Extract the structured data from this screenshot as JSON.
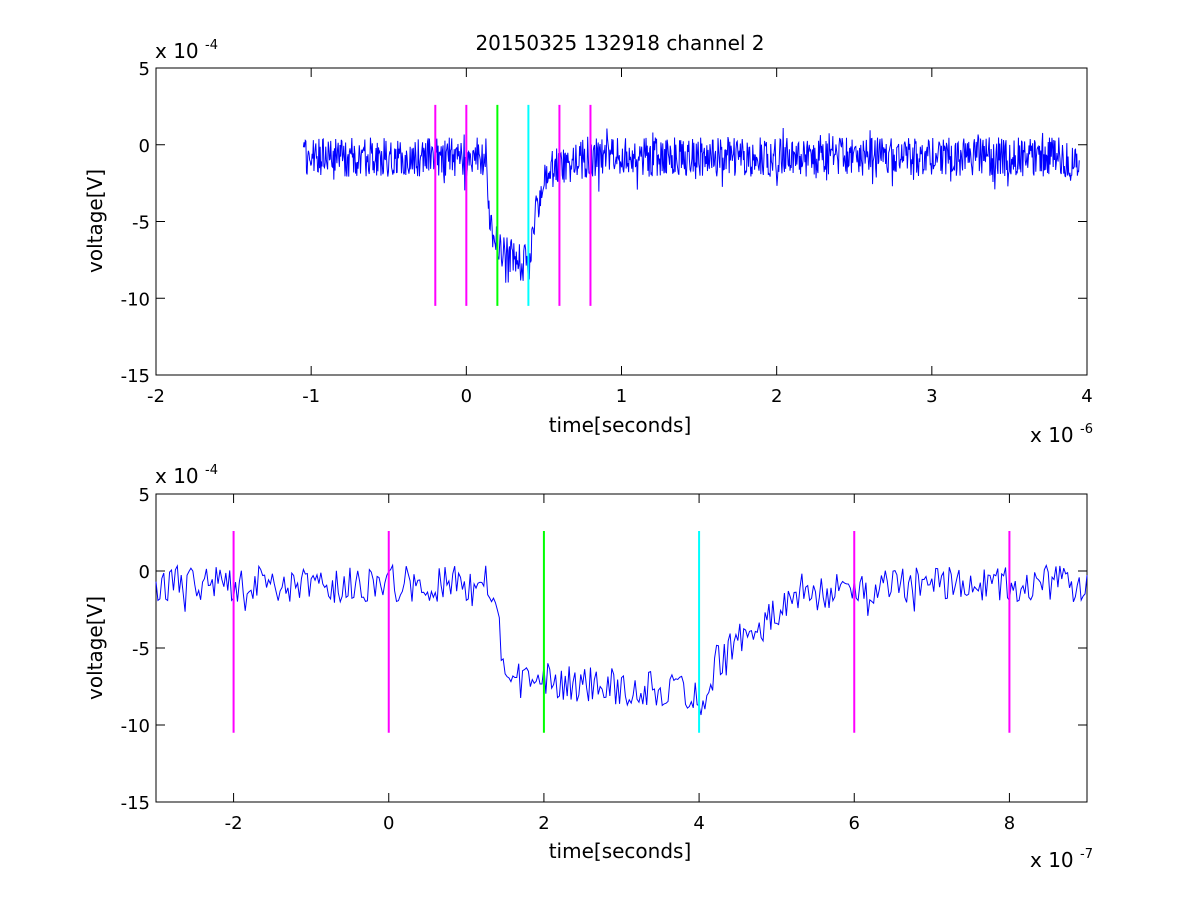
{
  "figure": {
    "title": "20150325 132918 channel 2"
  },
  "colors": {
    "signal": "#0000ff",
    "magenta_marker": "#ff00ff",
    "green_marker": "#00ff00",
    "cyan_marker": "#00ffff",
    "axes": "#000000"
  },
  "chart_data": [
    {
      "type": "line",
      "title": "20150325 132918 channel 2",
      "xlabel": "time[seconds]",
      "ylabel": "voltage[V]",
      "xlim": [
        -2,
        4
      ],
      "ylim": [
        -15,
        5
      ],
      "x_exponent_base": "x 10",
      "x_exponent": "-6",
      "y_exponent_base": "x 10",
      "y_exponent": "-4",
      "x_ticks": [
        -2,
        -1,
        0,
        1,
        2,
        3,
        4
      ],
      "x_tick_labels": [
        "-2",
        "-1",
        "0",
        "1",
        "2",
        "3",
        "4"
      ],
      "y_ticks": [
        5,
        0,
        -5,
        -10,
        -15
      ],
      "y_tick_labels": [
        "5",
        "0",
        "-5",
        "-10",
        "-15"
      ],
      "grid": false,
      "series": [
        {
          "color": "#0000ff",
          "x_range": [
            -1.05,
            3.95
          ],
          "baseline": [
            [
              -1.05,
              -0.8
            ],
            [
              0.13,
              -0.8
            ],
            [
              0.15,
              -4.5
            ],
            [
              0.18,
              -6.4
            ],
            [
              0.27,
              -7.0
            ],
            [
              0.36,
              -7.3
            ],
            [
              0.41,
              -7.8
            ],
            [
              0.43,
              -5.2
            ],
            [
              0.48,
              -3.0
            ],
            [
              0.55,
              -1.5
            ],
            [
              0.8,
              -0.8
            ],
            [
              3.95,
              -0.8
            ]
          ],
          "noise_amplitude": 1.6,
          "min_value": -9.8
        }
      ],
      "markers": [
        {
          "x": -0.2,
          "color": "#ff00ff",
          "y_range": [
            -10.5,
            2.6
          ]
        },
        {
          "x": 0.0,
          "color": "#ff00ff",
          "y_range": [
            -10.5,
            2.6
          ]
        },
        {
          "x": 0.2,
          "color": "#00ff00",
          "y_range": [
            -10.5,
            2.6
          ]
        },
        {
          "x": 0.4,
          "color": "#00ffff",
          "y_range": [
            -10.5,
            2.6
          ]
        },
        {
          "x": 0.6,
          "color": "#ff00ff",
          "y_range": [
            -10.5,
            2.6
          ]
        },
        {
          "x": 0.8,
          "color": "#ff00ff",
          "y_range": [
            -10.5,
            2.6
          ]
        }
      ]
    },
    {
      "type": "line",
      "xlabel": "time[seconds]",
      "ylabel": "voltage[V]",
      "xlim": [
        -3,
        9
      ],
      "ylim": [
        -15,
        5
      ],
      "x_exponent_base": "x 10",
      "x_exponent": "-7",
      "y_exponent_base": "x 10",
      "y_exponent": "-4",
      "x_ticks": [
        -2,
        0,
        2,
        4,
        6,
        8
      ],
      "x_tick_labels": [
        "-2",
        "0",
        "2",
        "4",
        "6",
        "8"
      ],
      "y_ticks": [
        5,
        0,
        -5,
        -10,
        -15
      ],
      "y_tick_labels": [
        "5",
        "0",
        "-5",
        "-10",
        "-15"
      ],
      "grid": false,
      "series": [
        {
          "color": "#0000ff",
          "x_range": [
            -3,
            9
          ],
          "baseline": [
            [
              -3,
              -0.8
            ],
            [
              1.35,
              -0.8
            ],
            [
              1.4,
              -3.5
            ],
            [
              1.5,
              -5.8
            ],
            [
              1.8,
              -7.0
            ],
            [
              2.5,
              -7.4
            ],
            [
              3.5,
              -7.6
            ],
            [
              3.95,
              -8.2
            ],
            [
              4.1,
              -8.5
            ],
            [
              4.2,
              -6.0
            ],
            [
              4.5,
              -4.5
            ],
            [
              5.0,
              -2.8
            ],
            [
              5.5,
              -1.4
            ],
            [
              6.0,
              -1.0
            ],
            [
              9,
              -0.8
            ]
          ],
          "noise_amplitude": 1.5,
          "min_value": -9.6
        }
      ],
      "markers": [
        {
          "x": -2,
          "color": "#ff00ff",
          "y_range": [
            -10.5,
            2.6
          ]
        },
        {
          "x": 0,
          "color": "#ff00ff",
          "y_range": [
            -10.5,
            2.6
          ]
        },
        {
          "x": 2,
          "color": "#00ff00",
          "y_range": [
            -10.5,
            2.6
          ]
        },
        {
          "x": 4,
          "color": "#00ffff",
          "y_range": [
            -10.5,
            2.6
          ]
        },
        {
          "x": 6,
          "color": "#ff00ff",
          "y_range": [
            -10.5,
            2.6
          ]
        },
        {
          "x": 8,
          "color": "#ff00ff",
          "y_range": [
            -10.5,
            2.6
          ]
        }
      ]
    }
  ]
}
